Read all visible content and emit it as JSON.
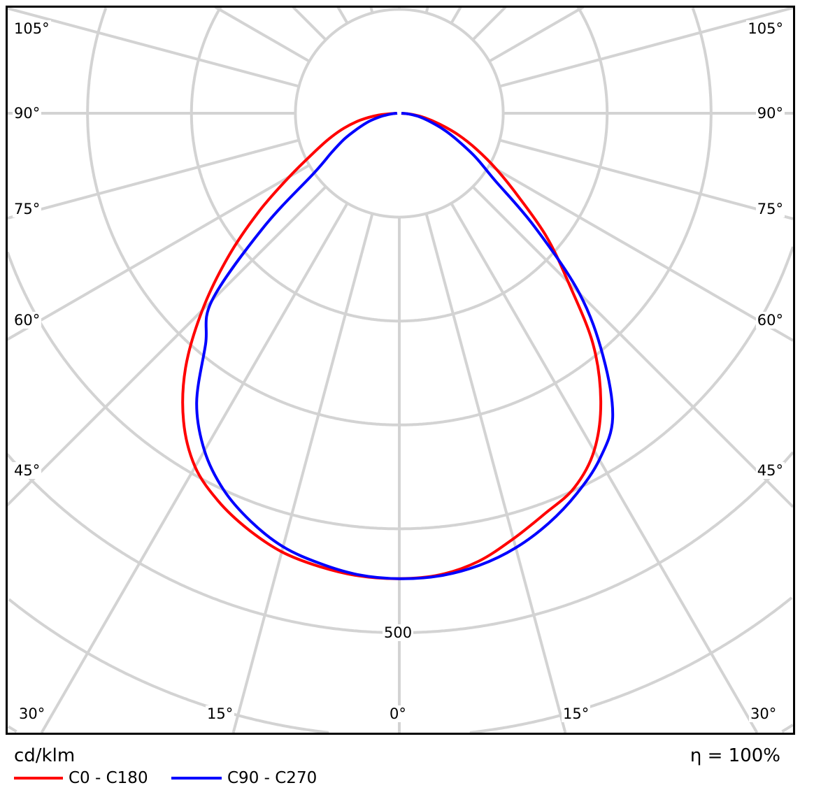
{
  "chart_data": {
    "type": "polar-line",
    "unit_label": "cd/klm",
    "efficiency_label": "η = 100%",
    "radial_tick_label": "500",
    "radial_step": 100,
    "angle_step_deg": 15,
    "angle_labels": {
      "left": [
        "105°",
        "90°",
        "75°",
        "60°",
        "45°"
      ],
      "right": [
        "105°",
        "90°",
        "75°",
        "60°",
        "45°"
      ],
      "bottom": [
        "30°",
        "15°",
        "0°",
        "15°",
        "30°"
      ]
    },
    "angles": [
      -90,
      -85,
      -80,
      -75,
      -70,
      -65,
      -60,
      -55,
      -50,
      -45,
      -40,
      -35,
      -30,
      -25,
      -20,
      -15,
      -10,
      -5,
      0,
      5,
      10,
      15,
      20,
      25,
      30,
      35,
      40,
      45,
      50,
      55,
      60,
      65,
      70,
      75,
      80,
      85,
      90
    ],
    "series": [
      {
        "name": "C0 - C180",
        "color": "#ff0000",
        "values": [
          3,
          20,
          38,
          55,
          72,
          92,
          122,
          165,
          215,
          268,
          320,
          362,
          393,
          412,
          426,
          437,
          443,
          447,
          448,
          446,
          438,
          424,
          410,
          398,
          375,
          338,
          290,
          230,
          185,
          140,
          108,
          82,
          60,
          40,
          25,
          12,
          2
        ]
      },
      {
        "name": "C90 - C270",
        "color": "#0000ff",
        "values": [
          2,
          8,
          18,
          30,
          42,
          58,
          75,
          100,
          170,
          255,
          290,
          340,
          375,
          400,
          418,
          432,
          440,
          446,
          448,
          447,
          442,
          433,
          420,
          404,
          385,
          358,
          305,
          245,
          170,
          112,
          85,
          62,
          45,
          30,
          20,
          10,
          2
        ]
      }
    ]
  }
}
